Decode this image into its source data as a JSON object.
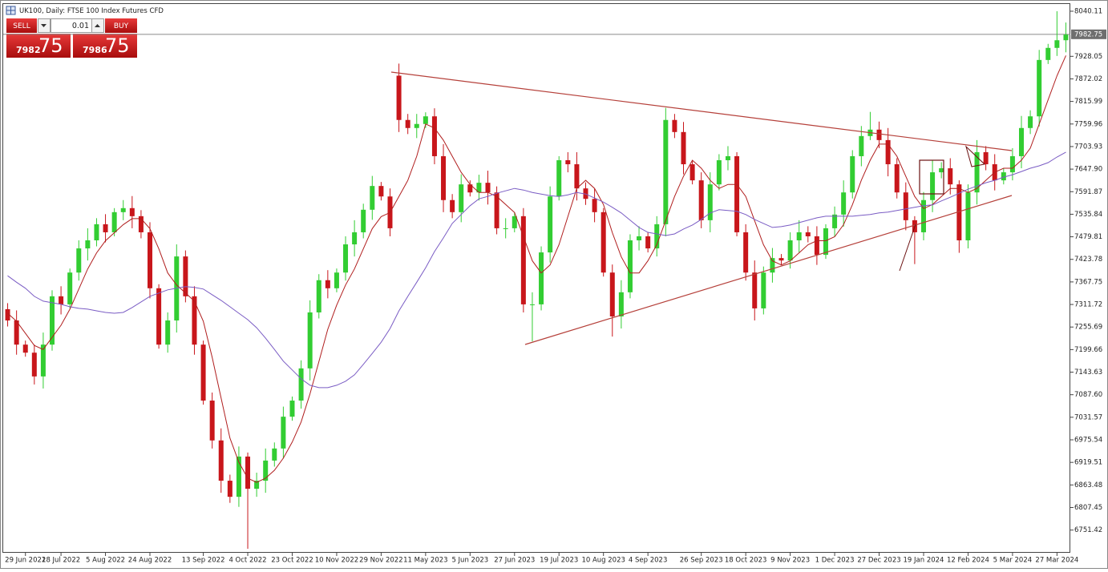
{
  "header": {
    "title": "UK100, Daily:  FTSE 100 Index Futures CFD"
  },
  "trade_panel": {
    "sell_label": "SELL",
    "buy_label": "BUY",
    "lot": "0.01",
    "sell_big": "7982",
    "sell_pips": "75",
    "buy_big": "7986",
    "buy_pips": "75"
  },
  "chart_data": {
    "type": "candlestick",
    "categories": [
      null,
      null,
      "29 Jun 2022",
      null,
      null,
      null,
      "18 Jul 2022",
      null,
      null,
      null,
      null,
      "5 Aug 2022",
      null,
      null,
      null,
      null,
      "24 Aug 2022",
      null,
      null,
      null,
      null,
      null,
      "13 Sep 2022",
      null,
      null,
      null,
      null,
      "4 Oct 2022",
      null,
      null,
      null,
      null,
      "23 Oct 2022",
      null,
      null,
      null,
      null,
      "10 Nov 2022",
      null,
      null,
      null,
      null,
      "29 Nov 2022",
      null,
      null,
      null,
      null,
      "11 May 2023",
      null,
      null,
      null,
      null,
      "5 Jun 2023",
      null,
      null,
      null,
      null,
      "27 Jun 2023",
      null,
      null,
      null,
      null,
      "19 Jul 2023",
      null,
      null,
      null,
      null,
      "10 Aug 2023",
      null,
      null,
      null,
      null,
      "4 Sep 2023",
      null,
      null,
      null,
      null,
      null,
      "26 Sep 2023",
      null,
      null,
      null,
      null,
      "18 Oct 2023",
      null,
      null,
      null,
      null,
      "9 Nov 2023",
      null,
      null,
      null,
      null,
      "1 Dec 2023",
      null,
      null,
      null,
      null,
      "27 Dec 2023",
      null,
      null,
      null,
      null,
      "19 Jan 2024",
      null,
      null,
      null,
      null,
      "12 Feb 2024",
      null,
      null,
      null,
      null,
      "5 Mar 2024",
      null,
      null,
      null,
      null,
      "27 Mar 2024",
      null
    ],
    "open": [
      7300,
      7272,
      7212,
      7192,
      7133,
      7212,
      7332,
      7312,
      7391,
      7451,
      7471,
      7511,
      7491,
      7541,
      7551,
      7531,
      7491,
      7352,
      7212,
      7272,
      7431,
      7332,
      7212,
      7073,
      6974,
      6874,
      6834,
      6934,
      6854,
      6874,
      6924,
      6954,
      7033,
      7073,
      7153,
      7292,
      7372,
      7352,
      7391,
      7461,
      7491,
      7547,
      7606,
      7580,
      7880,
      7770,
      7750,
      7760,
      7779,
      7680,
      7571,
      7541,
      7610,
      7590,
      7614,
      7590,
      7501,
      7501,
      7531,
      7312,
      7312,
      7441,
      7580,
      7670,
      7660,
      7600,
      7574,
      7541,
      7391,
      7282,
      7342,
      7471,
      7481,
      7451,
      7511,
      7770,
      7740,
      7660,
      7620,
      7521,
      7610,
      7670,
      7680,
      7491,
      7391,
      7302,
      7391,
      7427,
      7421,
      7471,
      7491,
      7481,
      7435,
      7501,
      7535,
      7590,
      7680,
      7730,
      7746,
      7720,
      7660,
      7590,
      7521,
      7491,
      7571,
      7640,
      7650,
      7610,
      7471,
      7590,
      7690,
      7660,
      7620,
      7640,
      7680,
      7750,
      7779,
      7919,
      7949,
      7968
    ],
    "high": [
      7315,
      7297,
      7222,
      7212,
      7242,
      7347,
      7357,
      7401,
      7471,
      7501,
      7526,
      7536,
      7551,
      7571,
      7581,
      7546,
      7516,
      7362,
      7292,
      7461,
      7446,
      7357,
      7222,
      7093,
      7004,
      6889,
      6959,
      6944,
      6894,
      6954,
      6969,
      7058,
      7083,
      7173,
      7322,
      7387,
      7397,
      7401,
      7481,
      7521,
      7562,
      7631,
      7616,
      7600,
      7910,
      7785,
      7785,
      7789,
      7799,
      7710,
      7586,
      7635,
      7620,
      7634,
      7644,
      7605,
      7526,
      7541,
      7551,
      7342,
      7456,
      7605,
      7680,
      7690,
      7690,
      7615,
      7599,
      7551,
      7411,
      7372,
      7486,
      7506,
      7491,
      7531,
      7800,
      7785,
      7765,
      7670,
      7640,
      7640,
      7685,
      7705,
      7690,
      7511,
      7421,
      7406,
      7452,
      7437,
      7491,
      7521,
      7506,
      7506,
      7511,
      7555,
      7620,
      7695,
      7755,
      7790,
      7766,
      7750,
      7675,
      7615,
      7531,
      7591,
      7670,
      7665,
      7675,
      7620,
      7610,
      7720,
      7705,
      7685,
      7650,
      7700,
      7780,
      7794,
      7944,
      7959,
      8040,
      8012
    ],
    "low": [
      7257,
      7187,
      7182,
      7113,
      7103,
      7197,
      7287,
      7302,
      7371,
      7421,
      7456,
      7466,
      7481,
      7521,
      7501,
      7476,
      7327,
      7202,
      7192,
      7242,
      7317,
      7187,
      7063,
      6954,
      6844,
      6819,
      6809,
      6705,
      6834,
      6844,
      6909,
      6929,
      7023,
      7053,
      7123,
      7277,
      7327,
      7342,
      7371,
      7431,
      7476,
      7522,
      7570,
      7481,
      7740,
      7735,
      7725,
      7750,
      7660,
      7541,
      7526,
      7516,
      7580,
      7570,
      7560,
      7486,
      7476,
      7491,
      7292,
      7220,
      7297,
      7416,
      7570,
      7640,
      7570,
      7559,
      7516,
      7381,
      7232,
      7252,
      7327,
      7446,
      7441,
      7431,
      7481,
      7725,
      7635,
      7610,
      7501,
      7491,
      7595,
      7645,
      7481,
      7371,
      7272,
      7287,
      7366,
      7411,
      7401,
      7441,
      7466,
      7410,
      7425,
      7481,
      7505,
      7575,
      7655,
      7720,
      7700,
      7630,
      7575,
      7496,
      7412,
      7471,
      7541,
      7625,
      7585,
      7440,
      7451,
      7560,
      7645,
      7595,
      7610,
      7620,
      7650,
      7735,
      7754,
      7909,
      7929,
      7938
    ],
    "close": [
      7272,
      7212,
      7192,
      7133,
      7212,
      7332,
      7312,
      7391,
      7451,
      7471,
      7511,
      7491,
      7541,
      7551,
      7531,
      7491,
      7352,
      7212,
      7272,
      7431,
      7332,
      7212,
      7073,
      6974,
      6874,
      6834,
      6934,
      6854,
      6874,
      6924,
      6954,
      7033,
      7073,
      7153,
      7292,
      7372,
      7352,
      7391,
      7461,
      7491,
      7547,
      7606,
      7580,
      7501,
      7770,
      7750,
      7760,
      7779,
      7680,
      7571,
      7541,
      7610,
      7590,
      7614,
      7590,
      7501,
      7501,
      7531,
      7312,
      7312,
      7441,
      7580,
      7670,
      7660,
      7600,
      7574,
      7541,
      7391,
      7282,
      7342,
      7471,
      7481,
      7451,
      7511,
      7770,
      7740,
      7660,
      7620,
      7521,
      7610,
      7670,
      7680,
      7491,
      7391,
      7302,
      7391,
      7427,
      7421,
      7471,
      7491,
      7481,
      7435,
      7501,
      7535,
      7590,
      7680,
      7730,
      7746,
      7720,
      7660,
      7590,
      7521,
      7491,
      7571,
      7640,
      7650,
      7610,
      7471,
      7590,
      7690,
      7660,
      7620,
      7640,
      7680,
      7750,
      7779,
      7919,
      7949,
      7968,
      7982
    ],
    "up_color": "#32cd32",
    "down_color": "#c8161b",
    "moving_averages": [
      {
        "color": "#b01e1e",
        "values": [
          7290,
          7270,
          7240,
          7210,
          7200,
          7230,
          7260,
          7300,
          7350,
          7400,
          7440,
          7470,
          7490,
          7510,
          7525,
          7525,
          7500,
          7450,
          7390,
          7360,
          7340,
          7320,
          7270,
          7180,
          7080,
          6980,
          6920,
          6880,
          6870,
          6880,
          6900,
          6930,
          6970,
          7020,
          7090,
          7170,
          7250,
          7310,
          7360,
          7400,
          7450,
          7500,
          7530,
          7540,
          7580,
          7620,
          7680,
          7760,
          7750,
          7720,
          7680,
          7640,
          7610,
          7590,
          7590,
          7580,
          7560,
          7540,
          7480,
          7420,
          7390,
          7410,
          7460,
          7530,
          7600,
          7620,
          7600,
          7560,
          7490,
          7430,
          7390,
          7390,
          7420,
          7460,
          7520,
          7580,
          7630,
          7670,
          7650,
          7620,
          7600,
          7610,
          7610,
          7580,
          7520,
          7460,
          7420,
          7410,
          7420,
          7440,
          7460,
          7470,
          7470,
          7480,
          7510,
          7560,
          7620,
          7670,
          7710,
          7710,
          7680,
          7630,
          7580,
          7550,
          7560,
          7580,
          7600,
          7600,
          7590,
          7600,
          7620,
          7640,
          7650,
          7650,
          7670,
          7700,
          7760,
          7820,
          7880,
          7930
        ]
      },
      {
        "color": "#7a5cc4",
        "values": [
          7383,
          7367,
          7352,
          7332,
          7320,
          7316,
          7312,
          7306,
          7302,
          7300,
          7296,
          7292,
          7290,
          7292,
          7304,
          7318,
          7332,
          7340,
          7348,
          7352,
          7356,
          7354,
          7350,
          7336,
          7322,
          7306,
          7290,
          7274,
          7254,
          7228,
          7200,
          7171,
          7149,
          7127,
          7111,
          7105,
          7105,
          7111,
          7121,
          7137,
          7163,
          7190,
          7218,
          7252,
          7296,
          7332,
          7367,
          7403,
          7443,
          7477,
          7513,
          7535,
          7557,
          7574,
          7580,
          7588,
          7594,
          7600,
          7596,
          7590,
          7586,
          7582,
          7580,
          7584,
          7590,
          7586,
          7576,
          7566,
          7553,
          7539,
          7521,
          7503,
          7491,
          7487,
          7483,
          7487,
          7499,
          7509,
          7523,
          7539,
          7547,
          7545,
          7543,
          7535,
          7523,
          7513,
          7503,
          7505,
          7509,
          7515,
          7521,
          7527,
          7531,
          7531,
          7531,
          7531,
          7533,
          7535,
          7539,
          7541,
          7545,
          7549,
          7553,
          7557,
          7559,
          7569,
          7578,
          7588,
          7598,
          7606,
          7614,
          7620,
          7628,
          7634,
          7642,
          7650,
          7656,
          7664,
          7678,
          7690
        ]
      }
    ],
    "current_price": 7982.75,
    "ylim": [
      6695,
      8058
    ],
    "yticks": [
      8040.11,
      7928.05,
      7872.02,
      7815.99,
      7759.96,
      7703.93,
      {
        "value": 7647.9,
        "label": "7647.90"
      },
      7591.87,
      7535.84,
      7479.81,
      7423.78,
      7367.75,
      7311.72,
      7255.69,
      7199.66,
      7143.63,
      {
        "value": 7087.6,
        "label": "7087.60"
      },
      7031.57,
      6975.54,
      6919.51,
      6863.48,
      6807.45,
      6751.42
    ],
    "grid": false
  }
}
